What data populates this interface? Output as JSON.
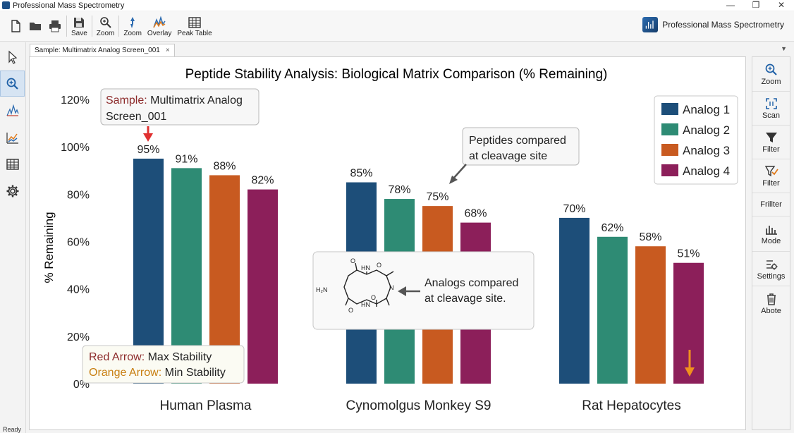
{
  "window": {
    "title": "Professional Mass Spectrometry",
    "minimize": "—",
    "restore": "❐",
    "close": "✕"
  },
  "toolbar": {
    "save": "Save",
    "zoom_a": "Zoom",
    "zoom_b": "Zoom",
    "overlay": "Overlay",
    "peak_table": "Peak Table",
    "brand": "Professional Mass Spectrometry"
  },
  "tab": {
    "label": "Sample: Multimatrix Analog Screen_001",
    "close": "×",
    "menu": "▼"
  },
  "right_panel": {
    "items": [
      {
        "label": "Zoom",
        "icon": "zoom-icon"
      },
      {
        "label": "Scan",
        "icon": "scan-icon"
      },
      {
        "label": "Filter",
        "icon": "filter-icon"
      },
      {
        "label": "Filter",
        "icon": "filter-check-icon"
      },
      {
        "label": "Frillter",
        "icon": ""
      },
      {
        "label": "Mode",
        "icon": "mode-icon"
      },
      {
        "label": "Settings",
        "icon": "settings-icon"
      },
      {
        "label": "Abote",
        "icon": "trash-icon"
      }
    ]
  },
  "status": {
    "text": "Ready"
  },
  "colors": {
    "analog1": "#1d4e79",
    "analog2": "#2e8b74",
    "analog3": "#c85a20",
    "analog4": "#8c1f5a",
    "red_arrow": "#e03030",
    "orange_arrow": "#f0901e"
  },
  "chart_data": {
    "type": "bar",
    "title": "Peptide Stability Analysis: Biological Matrix Comparison (% Remaining)",
    "ylabel": "% Remaining",
    "xlabel": "",
    "ylim": [
      0,
      120
    ],
    "yticks": [
      "0%",
      "20%",
      "40%",
      "60%",
      "80%",
      "100%",
      "120%"
    ],
    "categories": [
      "Human Plasma",
      "Cynomolgus Monkey S9",
      "Rat Hepatocytes"
    ],
    "series": [
      {
        "name": "Analog 1",
        "values": [
          95,
          85,
          70
        ]
      },
      {
        "name": "Analog 2",
        "values": [
          91,
          78,
          62
        ]
      },
      {
        "name": "Analog 3",
        "values": [
          88,
          75,
          58
        ]
      },
      {
        "name": "Analog 4",
        "values": [
          82,
          68,
          51
        ]
      }
    ],
    "value_labels": [
      [
        "95%",
        "85%",
        "70%"
      ],
      [
        "91%",
        "78%",
        "62%"
      ],
      [
        "88%",
        "75%",
        "58%"
      ],
      [
        "82%",
        "68%",
        "51%"
      ]
    ],
    "legend": "top-right",
    "annotations": {
      "sample_prefix": "Sample:",
      "sample_line1": "Multimatrix Analog",
      "sample_line2": "Screen_001",
      "peptides_line1": "Peptides compared",
      "peptides_line2": "at cleavage site",
      "analogs_line1": "Analogs compared",
      "analogs_line2": "at cleavage site.",
      "key_red_prefix": "Red Arrow:",
      "key_red_text": "Max Stability",
      "key_orange_prefix": "Orange Arrow:",
      "key_orange_text": "Min Stability",
      "mol_h2n": "H₂N",
      "mol_n": "N",
      "mol_hn": "HN",
      "mol_o": "O"
    }
  }
}
